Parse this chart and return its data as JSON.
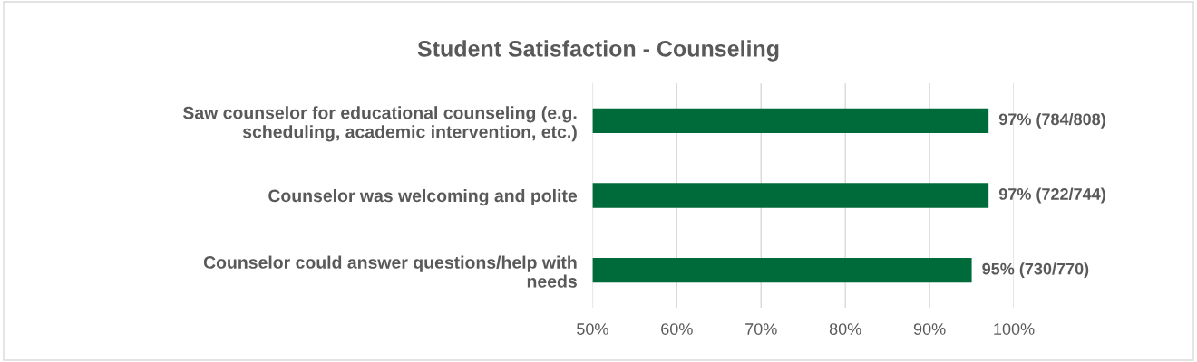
{
  "chart_data": {
    "type": "bar",
    "orientation": "horizontal",
    "title": "Student Satisfaction - Counseling",
    "categories": [
      "Saw counselor for educational counseling (e.g.\nscheduling, academic intervention, etc.)",
      "Counselor was welcoming and polite",
      "Counselor could answer questions/help with\nneeds"
    ],
    "values": [
      97,
      97,
      95
    ],
    "value_labels": [
      "97% (784/808)",
      "97% (722/744)",
      "95% (730/770)"
    ],
    "color": "#006b3a",
    "xlim": [
      50,
      100
    ],
    "xticks": [
      {
        "value": 50,
        "label": "50%"
      },
      {
        "value": 60,
        "label": "60%"
      },
      {
        "value": 70,
        "label": "70%"
      },
      {
        "value": 80,
        "label": "80%"
      },
      {
        "value": 90,
        "label": "90%"
      },
      {
        "value": 100,
        "label": "100%"
      }
    ],
    "grid": "x"
  }
}
